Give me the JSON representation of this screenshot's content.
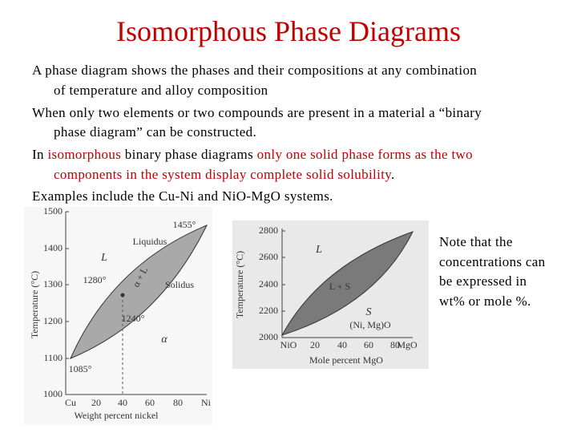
{
  "title": "Isomorphous Phase Diagrams",
  "paragraphs": [
    {
      "lines": [
        {
          "runs": [
            {
              "text": "A phase diagram shows the phases and their compositions at any combination"
            }
          ]
        },
        {
          "runs": [
            {
              "text": "of temperature and alloy composition"
            }
          ]
        }
      ]
    },
    {
      "lines": [
        {
          "runs": [
            {
              "text": "When only two elements or two compounds are present in a material a “binary"
            }
          ]
        },
        {
          "runs": [
            {
              "text": "phase diagram” can be constructed."
            }
          ]
        }
      ]
    },
    {
      "lines": [
        {
          "runs": [
            {
              "text": "In "
            },
            {
              "text": "isomorphous",
              "color": "#c00000"
            },
            {
              "text": " binary phase diagrams "
            },
            {
              "text": "only one solid phase forms as the two",
              "color": "#c00000"
            }
          ]
        },
        {
          "runs": [
            {
              "text": "components in the system display complete solid solubility",
              "color": "#c00000"
            },
            {
              "text": "."
            }
          ]
        }
      ]
    },
    {
      "lines": [
        {
          "runs": [
            {
              "text": "Examples include the Cu-Ni and NiO-MgO systems."
            }
          ]
        }
      ]
    }
  ],
  "figures": [
    {
      "y_ticks": [
        "1500",
        "1400",
        "1300",
        "1200",
        "1100",
        "1000"
      ],
      "x_ticks": [
        "Cu",
        "20",
        "40",
        "60",
        "80",
        "Ni"
      ],
      "y_label": "Temperature (°C)",
      "x_label": "Weight percent nickel",
      "annotations": [
        "1455°",
        "Liquidus",
        "L",
        "α + L",
        "Solidus",
        "1280°",
        "1240°",
        "α",
        "1085°"
      ]
    },
    {
      "y_ticks": [
        "2800",
        "2600",
        "2400",
        "2200",
        "2000"
      ],
      "x_ticks": [
        "NiO",
        "20",
        "40",
        "60",
        "80",
        "MgO"
      ],
      "y_label": "Temperature (°C)",
      "x_label": "Mole percent MgO",
      "annotations": [
        "L",
        "L + S",
        "S",
        "(Ni, Mg)O"
      ]
    }
  ],
  "note": {
    "lines": [
      "Note that the",
      "concentrations can",
      "be expressed in",
      "wt% or mole %."
    ]
  }
}
